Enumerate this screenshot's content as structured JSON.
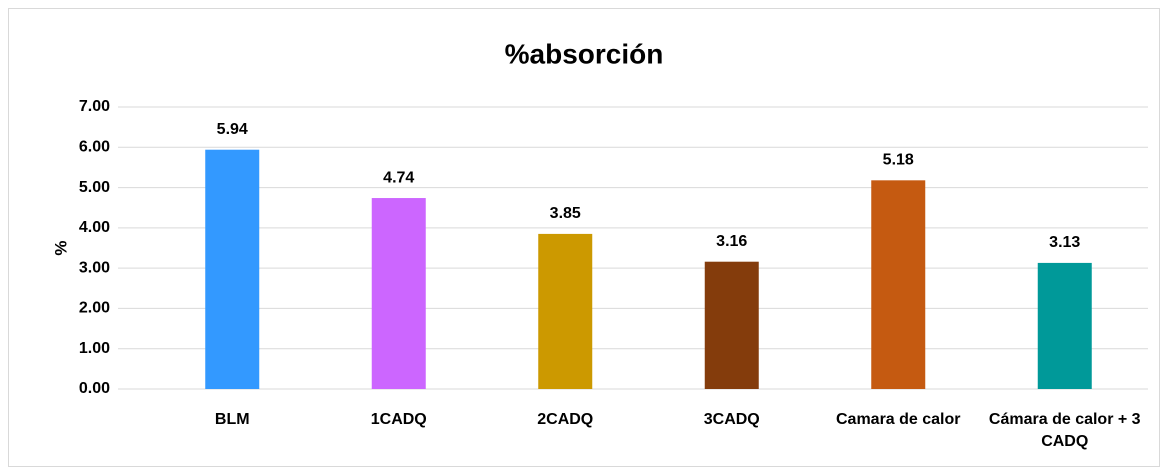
{
  "chart_data": {
    "type": "bar",
    "title": "%absorción",
    "y_label": "%",
    "categories": [
      "BLM",
      "1CADQ",
      "2CADQ",
      "3CADQ",
      "Camara de calor",
      "Cámara de calor + 3 CADQ"
    ],
    "values": [
      5.94,
      4.74,
      3.85,
      3.16,
      5.18,
      3.13
    ],
    "colors": [
      "#3399ff",
      "#cc66ff",
      "#cc9900",
      "#843c0c",
      "#c55a11",
      "#009999"
    ],
    "ylim": [
      0,
      7
    ],
    "yticks": [
      {
        "value": 0,
        "label": "0.00"
      },
      {
        "value": 1,
        "label": "1.00"
      },
      {
        "value": 2,
        "label": "2.00"
      },
      {
        "value": 3,
        "label": "3.00"
      },
      {
        "value": 4,
        "label": "4.00"
      },
      {
        "value": 5,
        "label": "5.00"
      },
      {
        "value": 6,
        "label": "6.00"
      },
      {
        "value": 7,
        "label": "7.00"
      }
    ],
    "grid": true
  }
}
